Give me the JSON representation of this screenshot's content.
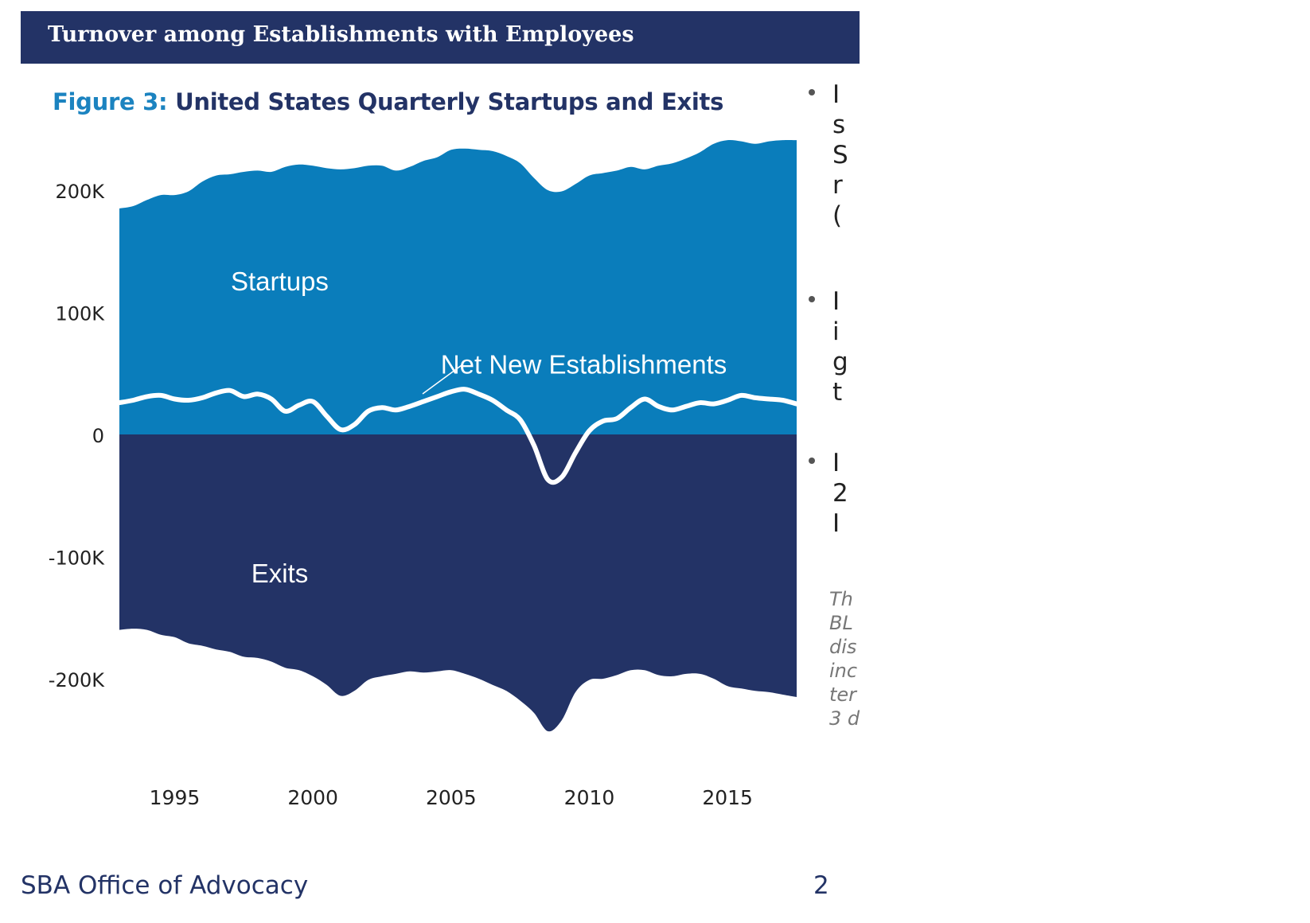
{
  "header": {
    "title": "Turnover among Establishments with Employees"
  },
  "figure": {
    "label": "Figure 3:",
    "title": "United States Quarterly Startups and Exits"
  },
  "chart_data": {
    "type": "area",
    "x_range": [
      1993,
      2017.5
    ],
    "ylim": [
      -260000,
      265000
    ],
    "y_ticks": [
      {
        "value": 200000,
        "label": "200K"
      },
      {
        "value": 100000,
        "label": "100K"
      },
      {
        "value": 0,
        "label": "0"
      },
      {
        "value": -100000,
        "label": "-100K"
      },
      {
        "value": -200000,
        "label": "-200K"
      }
    ],
    "x_ticks": [
      {
        "value": 1995,
        "label": "1995"
      },
      {
        "value": 2000,
        "label": "2000"
      },
      {
        "value": 2005,
        "label": "2005"
      },
      {
        "value": 2010,
        "label": "2010"
      },
      {
        "value": 2015,
        "label": "2015"
      }
    ],
    "x": [
      1993,
      1993.5,
      1994,
      1994.5,
      1995,
      1995.5,
      1996,
      1996.5,
      1997,
      1997.5,
      1998,
      1998.5,
      1999,
      1999.5,
      2000,
      2000.5,
      2001,
      2001.5,
      2002,
      2002.5,
      2003,
      2003.5,
      2004,
      2004.5,
      2005,
      2005.5,
      2006,
      2006.5,
      2007,
      2007.5,
      2008,
      2008.5,
      2009,
      2009.5,
      2010,
      2010.5,
      2011,
      2011.5,
      2012,
      2012.5,
      2013,
      2013.5,
      2014,
      2014.5,
      2015,
      2015.5,
      2016,
      2016.5,
      2017,
      2017.5
    ],
    "series": [
      {
        "name": "Startups",
        "color": "#0a7dbb",
        "values": [
          185000,
          187000,
          192000,
          196000,
          196000,
          199000,
          207000,
          212000,
          213000,
          215000,
          216000,
          215000,
          219000,
          221000,
          220000,
          218000,
          217000,
          218000,
          220000,
          220000,
          216000,
          219000,
          224000,
          227000,
          233000,
          234000,
          233000,
          232000,
          228000,
          222000,
          210000,
          200000,
          199000,
          205000,
          212000,
          214000,
          216000,
          219000,
          217000,
          220000,
          222000,
          226000,
          231000,
          238000,
          241000,
          240000,
          238000,
          240000,
          241000,
          241000
        ]
      },
      {
        "name": "Exits",
        "color": "#233366",
        "values": [
          -160000,
          -159000,
          -160000,
          -164000,
          -166000,
          -171000,
          -173000,
          -176000,
          -178000,
          -182000,
          -183000,
          -186000,
          -191000,
          -193000,
          -198000,
          -205000,
          -214000,
          -210000,
          -201000,
          -198000,
          -196000,
          -194000,
          -195000,
          -194000,
          -193000,
          -196000,
          -200000,
          -205000,
          -210000,
          -218000,
          -228000,
          -243000,
          -234000,
          -211000,
          -201000,
          -200000,
          -197000,
          -193000,
          -193000,
          -197000,
          -198000,
          -196000,
          -196000,
          -200000,
          -206000,
          -208000,
          -210000,
          -211000,
          -213000,
          -215000
        ]
      },
      {
        "name": "Net New Establishments",
        "color": "#ffffff",
        "values": [
          26000,
          28000,
          31000,
          32000,
          29000,
          28000,
          30000,
          34000,
          36000,
          31000,
          33000,
          29000,
          19000,
          24000,
          27000,
          15000,
          4000,
          8000,
          19000,
          22000,
          20000,
          23000,
          27000,
          31000,
          35000,
          37000,
          33000,
          28000,
          20000,
          12000,
          -9000,
          -37000,
          -35000,
          -15000,
          3000,
          11000,
          13000,
          22000,
          29000,
          23000,
          20000,
          23000,
          26000,
          25000,
          28000,
          32000,
          30000,
          29000,
          28000,
          25000
        ]
      }
    ],
    "annotations": [
      {
        "text": "Startups",
        "x": 1998.8,
        "y": 125000
      },
      {
        "text": "Net New Establishments",
        "x": 2009.8,
        "y": 57000
      },
      {
        "text": "Exits",
        "x": 1998.8,
        "y": -114000
      }
    ],
    "grid": false,
    "legend": "none"
  },
  "bullets": [
    {
      "text": "I\ns\nS\nr\n("
    },
    {
      "text": "I\ni\ng\nt"
    },
    {
      "text": "I\n2\nI"
    }
  ],
  "note": "Th\nBL\ndis\ninc\nter\n3 d",
  "footer": {
    "org": "SBA Office of Advocacy",
    "page": "2"
  }
}
